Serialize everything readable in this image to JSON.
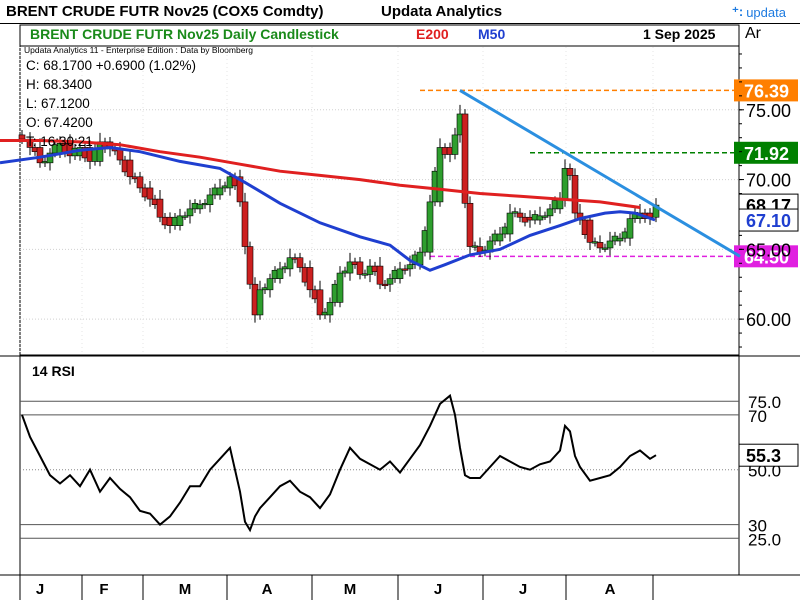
{
  "header": {
    "title": "BRENT CRUDE FUTR  Nov25 (COX5 Comdty)",
    "brand": "Updata Analytics",
    "logo_text": "updata",
    "chart_title": "BRENT CRUDE FUTR  Nov25 Daily Candlestick",
    "e200_label": "E200",
    "m50_label": "M50",
    "date": "1 Sep 2025",
    "axis_tab": "Ar"
  },
  "info": {
    "edition": "Updata Analytics 11 - Enterprise Edition : Data by Bloomberg",
    "close": "C: 68.1700  +0.6900 (1.02%)",
    "high": "H: 68.3400",
    "low": "L: 67.1200",
    "open": "O: 67.4200",
    "time": "T: 16:30:21"
  },
  "colors": {
    "e200": "#e02020",
    "m50": "#1f3fd0",
    "trendline": "#2b8fe0",
    "level_high": "#ff7f00",
    "level_res": "#008000",
    "level_sup": "#e020e0",
    "rsi_line": "#000000",
    "up_candle": "#2e9e2e",
    "down_candle": "#cc2020"
  },
  "chart_data": [
    {
      "type": "candlestick",
      "title": "BRENT CRUDE FUTR  Nov25 Daily Candlestick",
      "x_months": [
        "J",
        "F",
        "M",
        "A",
        "M",
        "J",
        "J",
        "A"
      ],
      "y_ticks": [
        60.0,
        65.0,
        70.0,
        75.0
      ],
      "ylim": [
        57.5,
        79.5
      ],
      "series": [
        {
          "name": "E200",
          "color": "#e02020",
          "points": [
            [
              0,
              72.8
            ],
            [
              40,
              72.8
            ],
            [
              80,
              72.7
            ],
            [
              120,
              72.5
            ],
            [
              160,
              72.0
            ],
            [
              200,
              71.6
            ],
            [
              240,
              71.1
            ],
            [
              280,
              70.6
            ],
            [
              320,
              70.3
            ],
            [
              360,
              70.0
            ],
            [
              400,
              69.6
            ],
            [
              440,
              69.3
            ],
            [
              480,
              69.0
            ],
            [
              520,
              68.8
            ],
            [
              560,
              68.6
            ],
            [
              600,
              68.4
            ],
            [
              640,
              68.0
            ]
          ]
        },
        {
          "name": "M50",
          "color": "#1f3fd0",
          "points": [
            [
              0,
              71.2
            ],
            [
              40,
              71.6
            ],
            [
              80,
              72.1
            ],
            [
              110,
              72.3
            ],
            [
              140,
              72.0
            ],
            [
              180,
              71.3
            ],
            [
              220,
              70.8
            ],
            [
              245,
              69.8
            ],
            [
              280,
              68.3
            ],
            [
              320,
              66.9
            ],
            [
              360,
              65.9
            ],
            [
              390,
              65.3
            ],
            [
              410,
              64.2
            ],
            [
              430,
              63.5
            ],
            [
              445,
              63.9
            ],
            [
              470,
              64.6
            ],
            [
              500,
              65.0
            ],
            [
              530,
              66.0
            ],
            [
              560,
              66.7
            ],
            [
              580,
              67.2
            ],
            [
              605,
              67.6
            ],
            [
              620,
              67.7
            ],
            [
              635,
              67.6
            ],
            [
              655,
              67.1
            ]
          ]
        }
      ],
      "levels": [
        {
          "label": "76.39",
          "value": 76.39,
          "color": "#ff7f00"
        },
        {
          "label": "71.92",
          "value": 71.92,
          "color": "#008000"
        },
        {
          "label": "64.50",
          "value": 64.5,
          "color": "#e020e0"
        }
      ],
      "trendline": {
        "color": "#2b8fe0",
        "from": [
          460,
          76.39
        ],
        "to": [
          740,
          64.5
        ]
      },
      "price_labels": [
        {
          "label": "68.17",
          "value": 68.17,
          "color": "#000000"
        },
        {
          "label": "67.10",
          "value": 67.1,
          "color": "#1f3fd0"
        }
      ],
      "current": {
        "open": 67.42,
        "high": 68.34,
        "low": 67.12,
        "close": 68.17,
        "change": 0.69,
        "change_pct": 1.02
      },
      "price_path": [
        [
          22,
          72.9
        ],
        [
          30,
          72.3
        ],
        [
          40,
          71.2
        ],
        [
          50,
          71.9
        ],
        [
          60,
          72.6
        ],
        [
          70,
          71.7
        ],
        [
          80,
          72.3
        ],
        [
          90,
          71.3
        ],
        [
          100,
          72.7
        ],
        [
          110,
          72.2
        ],
        [
          120,
          71.4
        ],
        [
          130,
          70.2
        ],
        [
          140,
          69.4
        ],
        [
          150,
          68.6
        ],
        [
          160,
          67.3
        ],
        [
          170,
          66.7
        ],
        [
          180,
          67.4
        ],
        [
          190,
          67.9
        ],
        [
          200,
          68.2
        ],
        [
          210,
          68.9
        ],
        [
          220,
          69.4
        ],
        [
          230,
          70.2
        ],
        [
          240,
          68.4
        ],
        [
          245,
          65.2
        ],
        [
          250,
          62.5
        ],
        [
          255,
          60.3
        ],
        [
          260,
          62.1
        ],
        [
          270,
          62.9
        ],
        [
          280,
          63.6
        ],
        [
          290,
          64.4
        ],
        [
          300,
          63.7
        ],
        [
          310,
          62.1
        ],
        [
          320,
          60.3
        ],
        [
          330,
          61.2
        ],
        [
          340,
          63.3
        ],
        [
          350,
          64.1
        ],
        [
          360,
          63.2
        ],
        [
          370,
          63.8
        ],
        [
          380,
          62.5
        ],
        [
          390,
          62.9
        ],
        [
          400,
          63.6
        ],
        [
          410,
          63.9
        ],
        [
          420,
          64.8
        ],
        [
          430,
          68.4
        ],
        [
          440,
          72.3
        ],
        [
          450,
          71.8
        ],
        [
          455,
          73.2
        ],
        [
          460,
          74.7
        ],
        [
          465,
          68.3
        ],
        [
          470,
          65.2
        ],
        [
          480,
          64.8
        ],
        [
          490,
          65.6
        ],
        [
          500,
          66.1
        ],
        [
          510,
          67.6
        ],
        [
          520,
          67.3
        ],
        [
          530,
          67.1
        ],
        [
          540,
          67.4
        ],
        [
          550,
          67.9
        ],
        [
          560,
          68.6
        ],
        [
          565,
          70.8
        ],
        [
          570,
          70.3
        ],
        [
          575,
          67.6
        ],
        [
          580,
          67.1
        ],
        [
          590,
          65.5
        ],
        [
          600,
          65.1
        ],
        [
          610,
          65.6
        ],
        [
          620,
          65.8
        ],
        [
          630,
          67.2
        ],
        [
          640,
          67.6
        ],
        [
          650,
          67.3
        ],
        [
          656,
          68.17
        ]
      ]
    },
    {
      "type": "line",
      "title": "14 RSI",
      "ylim": [
        20,
        82
      ],
      "y_ticks": [
        {
          "label": "75.0",
          "value": 75
        },
        {
          "label": "70",
          "value": 70
        },
        {
          "label": "50.0",
          "value": 50
        },
        {
          "label": "30",
          "value": 30
        },
        {
          "label": "25.0",
          "value": 25
        }
      ],
      "last_label": "55.3",
      "last_value": 55.3,
      "points": [
        [
          22,
          70
        ],
        [
          30,
          62
        ],
        [
          40,
          55
        ],
        [
          50,
          48
        ],
        [
          60,
          45
        ],
        [
          70,
          48
        ],
        [
          80,
          44
        ],
        [
          90,
          50
        ],
        [
          100,
          42
        ],
        [
          110,
          47
        ],
        [
          120,
          43
        ],
        [
          130,
          40
        ],
        [
          140,
          35
        ],
        [
          150,
          34
        ],
        [
          160,
          30
        ],
        [
          170,
          33
        ],
        [
          180,
          38
        ],
        [
          190,
          44
        ],
        [
          200,
          44
        ],
        [
          210,
          50
        ],
        [
          220,
          54
        ],
        [
          230,
          58
        ],
        [
          240,
          42
        ],
        [
          245,
          31
        ],
        [
          250,
          28
        ],
        [
          255,
          33
        ],
        [
          260,
          36
        ],
        [
          270,
          40
        ],
        [
          280,
          44
        ],
        [
          290,
          46
        ],
        [
          300,
          42
        ],
        [
          310,
          40
        ],
        [
          320,
          36
        ],
        [
          330,
          41
        ],
        [
          340,
          50
        ],
        [
          350,
          58
        ],
        [
          360,
          54
        ],
        [
          370,
          52
        ],
        [
          380,
          50
        ],
        [
          390,
          53
        ],
        [
          400,
          49
        ],
        [
          410,
          54
        ],
        [
          420,
          59
        ],
        [
          430,
          66
        ],
        [
          440,
          74
        ],
        [
          450,
          77
        ],
        [
          455,
          70
        ],
        [
          460,
          58
        ],
        [
          465,
          48
        ],
        [
          470,
          47
        ],
        [
          480,
          47
        ],
        [
          490,
          51
        ],
        [
          500,
          55
        ],
        [
          510,
          53
        ],
        [
          520,
          51
        ],
        [
          530,
          50
        ],
        [
          540,
          52
        ],
        [
          550,
          53
        ],
        [
          560,
          57
        ],
        [
          565,
          66
        ],
        [
          570,
          64
        ],
        [
          575,
          55
        ],
        [
          580,
          51
        ],
        [
          590,
          46
        ],
        [
          600,
          47
        ],
        [
          610,
          48
        ],
        [
          620,
          51
        ],
        [
          630,
          55
        ],
        [
          640,
          57
        ],
        [
          650,
          54
        ],
        [
          656,
          55.3
        ]
      ]
    }
  ]
}
